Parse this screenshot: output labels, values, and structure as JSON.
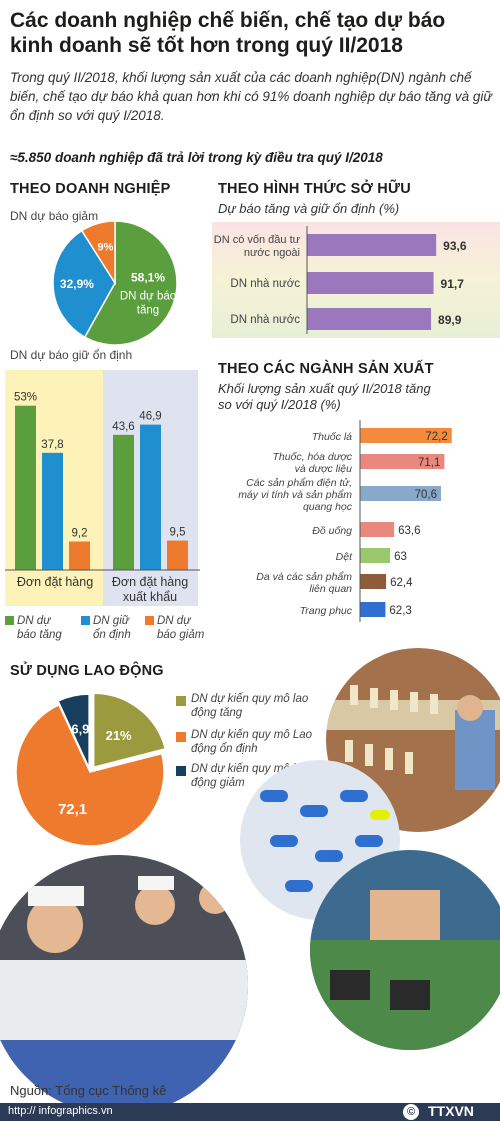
{
  "title": "Các doanh nghiệp chế biến, chế tạo dự báo kinh doanh sẽ tốt hơn trong quý II/2018",
  "intro": "Trong quý II/2018, khối lượng sản xuất của các doanh nghiệp(DN) ngành chế biến, chế tạo dự báo khả quan hơn khi có 91% doanh nghiệp dự báo tăng và giữ ổn định so với quý I/2018.",
  "survey_note": "≈5.850 doanh nghiệp đã trả lời trong kỳ điều tra quý I/2018",
  "colors": {
    "green": "#5a9e3e",
    "blue": "#1f8fcf",
    "orange": "#ee7a2d",
    "purple": "#9b78bd",
    "salmon": "#e9887f",
    "olive": "#9c9a3e",
    "navy": "#173e5c",
    "brown": "#8e5c3a"
  },
  "by_enterprise": {
    "heading": "THEO DOANH NGHIỆP",
    "pie_labels": {
      "decrease": "DN dự báo giảm",
      "stable": "DN dự báo giữ ổn định",
      "increase": "DN dự báo tăng"
    },
    "bar_groups": [
      "Đơn đặt hàng",
      "Đơn đặt hàng xuất khẩu"
    ],
    "legend": [
      "DN dự báo tăng",
      "DN giữ ổn định",
      "DN dự báo giảm"
    ]
  },
  "by_ownership": {
    "heading": "THEO HÌNH THỨC SỞ HỮU",
    "subtitle": "Dự báo tăng và giữ ổn định (%)"
  },
  "by_industry": {
    "heading": "THEO CÁC NGÀNH SẢN XUẤT",
    "subtitle": "Khối lượng sản xuất quý II/2018 tăng so với quý I/2018 (%)"
  },
  "labor": {
    "heading": "SỬ DỤNG LAO ĐỘNG",
    "legend": [
      "DN dự kiến quy mô lao động tăng",
      "DN dự kiến quy mô Lao động ổn định",
      "DN dự kiến quy mô lao động giảm"
    ]
  },
  "source": "Nguồn: Tổng cục Thống kê",
  "website": "http:// infographics.vn",
  "agency_logo": "TTXVN",
  "chart_data": [
    {
      "type": "pie",
      "labels": [
        "DN dự báo tăng",
        "DN dự báo giữ ổn định",
        "DN dự báo giảm"
      ],
      "values": [
        58.1,
        32.9,
        9
      ],
      "value_labels": [
        "58,1%",
        "32,9%",
        "9%"
      ]
    },
    {
      "type": "bar",
      "categories": [
        "Đơn đặt hàng",
        "Đơn đặt hàng xuất khẩu"
      ],
      "series": [
        {
          "name": "DN dự báo tăng",
          "values": [
            53,
            43.6
          ],
          "value_labels": [
            "53%",
            "43,6"
          ]
        },
        {
          "name": "DN giữ ổn định",
          "values": [
            37.8,
            46.9
          ],
          "value_labels": [
            "37,8",
            "46,9"
          ]
        },
        {
          "name": "DN dự báo giảm",
          "values": [
            9.2,
            9.5
          ],
          "value_labels": [
            "9,2",
            "9,5"
          ]
        }
      ]
    },
    {
      "type": "bar",
      "title": "Dự báo tăng và giữ ổn định (%)",
      "categories": [
        "DN có vốn đầu tư nước ngoài",
        "DN nhà nước",
        "DN nhà nước"
      ],
      "values": [
        93.6,
        91.7,
        89.9
      ],
      "value_labels": [
        "93,6",
        "91,7",
        "89,9"
      ]
    },
    {
      "type": "bar",
      "title": "Khối lượng sản xuất quý II/2018 tăng so với quý I/2018 (%)",
      "categories": [
        "Thuốc lá",
        "Thuốc, hóa dược và dược liệu",
        "Các sản phẩm điện tử, máy vi tính và sản phẩm quang học",
        "Đồ uống",
        "Dệt",
        "Da và các sản phẩm liên quan",
        "Trang phục"
      ],
      "values": [
        72.2,
        71.1,
        70.6,
        63.6,
        63,
        62.4,
        62.3
      ],
      "value_labels": [
        "72,2",
        "71,1",
        "70,6",
        "63,6",
        "63",
        "62,4",
        "62,3"
      ]
    },
    {
      "type": "pie",
      "labels": [
        "DN dự kiến quy mô lao động tăng",
        "DN dự kiến quy mô Lao động ổn định",
        "DN dự kiến quy mô lao động giảm"
      ],
      "values": [
        21,
        72.1,
        6.9
      ],
      "value_labels": [
        "21%",
        "72,1",
        "6,9"
      ]
    }
  ]
}
